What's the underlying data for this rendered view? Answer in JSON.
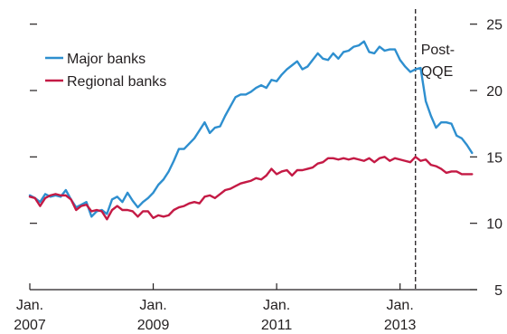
{
  "chart_data": {
    "type": "line",
    "title": "",
    "xlabel": "",
    "ylabel": "",
    "y_axis_side": "right",
    "ylim": [
      5,
      26
    ],
    "y_ticks": [
      5,
      10,
      15,
      20,
      25
    ],
    "x_ticks": [
      {
        "date": "2007-01",
        "label_line1": "Jan.",
        "label_line2": "2007"
      },
      {
        "date": "2009-01",
        "label_line1": "Jan.",
        "label_line2": "2009"
      },
      {
        "date": "2011-01",
        "label_line1": "Jan.",
        "label_line2": "2011"
      },
      {
        "date": "2013-01",
        "label_line1": "Jan.",
        "label_line2": "2013"
      }
    ],
    "xlim": [
      "2007-01",
      "2014-04"
    ],
    "grid": false,
    "legend_position": "top-left",
    "annotation": {
      "date": "2013-04",
      "label_line1": "Post-",
      "label_line2": "QQE",
      "style": "dashed-vertical-line"
    },
    "series": [
      {
        "name": "Major banks",
        "color": "#2e8fcf",
        "points": [
          [
            "2007-01",
            12.1
          ],
          [
            "2007-02",
            11.9
          ],
          [
            "2007-03",
            11.6
          ],
          [
            "2007-04",
            12.2
          ],
          [
            "2007-05",
            12.0
          ],
          [
            "2007-06",
            12.1
          ],
          [
            "2007-07",
            12.0
          ],
          [
            "2007-08",
            12.5
          ],
          [
            "2007-09",
            11.8
          ],
          [
            "2007-10",
            11.2
          ],
          [
            "2007-11",
            11.4
          ],
          [
            "2007-12",
            11.6
          ],
          [
            "2008-01",
            10.5
          ],
          [
            "2008-02",
            10.9
          ],
          [
            "2008-03",
            11.0
          ],
          [
            "2008-04",
            10.7
          ],
          [
            "2008-05",
            11.8
          ],
          [
            "2008-06",
            12.0
          ],
          [
            "2008-07",
            11.6
          ],
          [
            "2008-08",
            12.3
          ],
          [
            "2008-09",
            11.7
          ],
          [
            "2008-10",
            11.2
          ],
          [
            "2008-11",
            11.6
          ],
          [
            "2008-12",
            11.9
          ],
          [
            "2009-01",
            12.3
          ],
          [
            "2009-02",
            12.9
          ],
          [
            "2009-03",
            13.3
          ],
          [
            "2009-04",
            13.9
          ],
          [
            "2009-05",
            14.7
          ],
          [
            "2009-06",
            15.6
          ],
          [
            "2009-07",
            15.6
          ],
          [
            "2009-08",
            16.0
          ],
          [
            "2009-09",
            16.4
          ],
          [
            "2009-10",
            17.0
          ],
          [
            "2009-11",
            17.6
          ],
          [
            "2009-12",
            16.8
          ],
          [
            "2010-01",
            17.2
          ],
          [
            "2010-02",
            17.3
          ],
          [
            "2010-03",
            18.1
          ],
          [
            "2010-04",
            18.8
          ],
          [
            "2010-05",
            19.5
          ],
          [
            "2010-06",
            19.7
          ],
          [
            "2010-07",
            19.7
          ],
          [
            "2010-08",
            19.9
          ],
          [
            "2010-09",
            20.2
          ],
          [
            "2010-10",
            20.4
          ],
          [
            "2010-11",
            20.2
          ],
          [
            "2010-12",
            20.8
          ],
          [
            "2011-01",
            20.7
          ],
          [
            "2011-02",
            21.2
          ],
          [
            "2011-03",
            21.6
          ],
          [
            "2011-04",
            21.9
          ],
          [
            "2011-05",
            22.2
          ],
          [
            "2011-06",
            21.6
          ],
          [
            "2011-07",
            21.8
          ],
          [
            "2011-08",
            22.3
          ],
          [
            "2011-09",
            22.8
          ],
          [
            "2011-10",
            22.4
          ],
          [
            "2011-11",
            22.3
          ],
          [
            "2011-12",
            22.8
          ],
          [
            "2012-01",
            22.4
          ],
          [
            "2012-02",
            22.9
          ],
          [
            "2012-03",
            23.0
          ],
          [
            "2012-04",
            23.3
          ],
          [
            "2012-05",
            23.4
          ],
          [
            "2012-06",
            23.7
          ],
          [
            "2012-07",
            22.9
          ],
          [
            "2012-08",
            22.8
          ],
          [
            "2012-09",
            23.3
          ],
          [
            "2012-10",
            23.0
          ],
          [
            "2012-11",
            23.1
          ],
          [
            "2012-12",
            23.1
          ],
          [
            "2013-01",
            22.3
          ],
          [
            "2013-02",
            21.8
          ],
          [
            "2013-03",
            21.4
          ],
          [
            "2013-04",
            21.6
          ],
          [
            "2013-05",
            21.7
          ],
          [
            "2013-06",
            19.2
          ],
          [
            "2013-07",
            18.1
          ],
          [
            "2013-08",
            17.2
          ],
          [
            "2013-09",
            17.6
          ],
          [
            "2013-10",
            17.6
          ],
          [
            "2013-11",
            17.5
          ],
          [
            "2013-12",
            16.6
          ],
          [
            "2014-01",
            16.4
          ],
          [
            "2014-02",
            15.9
          ],
          [
            "2014-03",
            15.3
          ]
        ]
      },
      {
        "name": "Regional banks",
        "color": "#c41a45",
        "points": [
          [
            "2007-01",
            12.0
          ],
          [
            "2007-02",
            11.9
          ],
          [
            "2007-03",
            11.3
          ],
          [
            "2007-04",
            11.9
          ],
          [
            "2007-05",
            12.1
          ],
          [
            "2007-06",
            12.2
          ],
          [
            "2007-07",
            12.1
          ],
          [
            "2007-08",
            12.1
          ],
          [
            "2007-09",
            11.8
          ],
          [
            "2007-10",
            11.0
          ],
          [
            "2007-11",
            11.3
          ],
          [
            "2007-12",
            11.4
          ],
          [
            "2008-01",
            10.9
          ],
          [
            "2008-02",
            11.0
          ],
          [
            "2008-03",
            10.9
          ],
          [
            "2008-04",
            10.3
          ],
          [
            "2008-05",
            11.0
          ],
          [
            "2008-06",
            11.3
          ],
          [
            "2008-07",
            11.0
          ],
          [
            "2008-08",
            11.0
          ],
          [
            "2008-09",
            10.9
          ],
          [
            "2008-10",
            10.5
          ],
          [
            "2008-11",
            10.9
          ],
          [
            "2008-12",
            10.9
          ],
          [
            "2009-01",
            10.4
          ],
          [
            "2009-02",
            10.6
          ],
          [
            "2009-03",
            10.5
          ],
          [
            "2009-04",
            10.6
          ],
          [
            "2009-05",
            11.0
          ],
          [
            "2009-06",
            11.2
          ],
          [
            "2009-07",
            11.3
          ],
          [
            "2009-08",
            11.5
          ],
          [
            "2009-09",
            11.6
          ],
          [
            "2009-10",
            11.5
          ],
          [
            "2009-11",
            12.0
          ],
          [
            "2009-12",
            12.1
          ],
          [
            "2010-01",
            11.9
          ],
          [
            "2010-02",
            12.2
          ],
          [
            "2010-03",
            12.5
          ],
          [
            "2010-04",
            12.6
          ],
          [
            "2010-05",
            12.8
          ],
          [
            "2010-06",
            13.0
          ],
          [
            "2010-07",
            13.1
          ],
          [
            "2010-08",
            13.2
          ],
          [
            "2010-09",
            13.4
          ],
          [
            "2010-10",
            13.3
          ],
          [
            "2010-11",
            13.6
          ],
          [
            "2010-12",
            14.1
          ],
          [
            "2011-01",
            13.7
          ],
          [
            "2011-02",
            13.9
          ],
          [
            "2011-03",
            14.0
          ],
          [
            "2011-04",
            13.6
          ],
          [
            "2011-05",
            14.0
          ],
          [
            "2011-06",
            14.0
          ],
          [
            "2011-07",
            14.1
          ],
          [
            "2011-08",
            14.2
          ],
          [
            "2011-09",
            14.5
          ],
          [
            "2011-10",
            14.6
          ],
          [
            "2011-11",
            14.9
          ],
          [
            "2011-12",
            14.9
          ],
          [
            "2012-01",
            14.8
          ],
          [
            "2012-02",
            14.9
          ],
          [
            "2012-03",
            14.8
          ],
          [
            "2012-04",
            14.9
          ],
          [
            "2012-05",
            14.8
          ],
          [
            "2012-06",
            14.7
          ],
          [
            "2012-07",
            14.9
          ],
          [
            "2012-08",
            14.6
          ],
          [
            "2012-09",
            14.9
          ],
          [
            "2012-10",
            15.0
          ],
          [
            "2012-11",
            14.7
          ],
          [
            "2012-12",
            14.9
          ],
          [
            "2013-01",
            14.8
          ],
          [
            "2013-02",
            14.7
          ],
          [
            "2013-03",
            14.6
          ],
          [
            "2013-04",
            15.0
          ],
          [
            "2013-05",
            14.7
          ],
          [
            "2013-06",
            14.8
          ],
          [
            "2013-07",
            14.4
          ],
          [
            "2013-08",
            14.3
          ],
          [
            "2013-09",
            14.1
          ],
          [
            "2013-10",
            13.8
          ],
          [
            "2013-11",
            13.9
          ],
          [
            "2013-12",
            13.9
          ],
          [
            "2014-01",
            13.7
          ],
          [
            "2014-02",
            13.7
          ],
          [
            "2014-03",
            13.7
          ]
        ]
      }
    ]
  }
}
